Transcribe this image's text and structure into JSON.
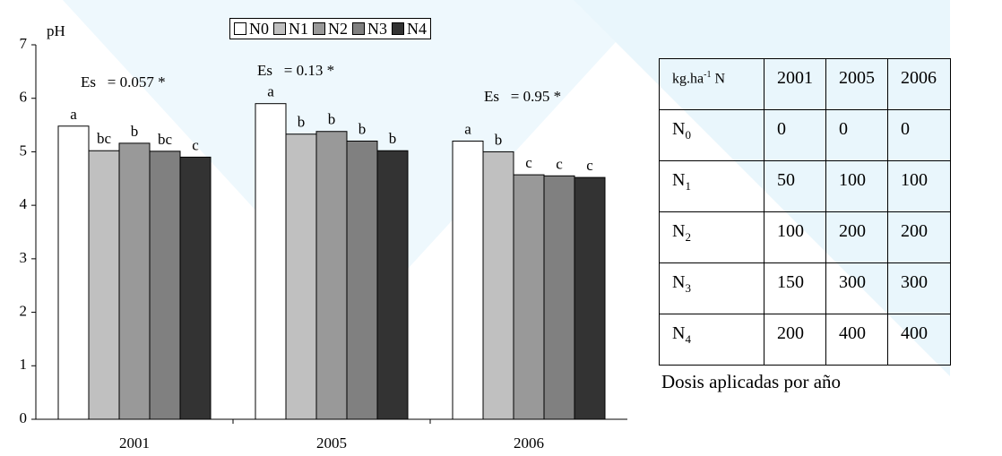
{
  "chart_data": {
    "type": "bar",
    "ylabel": "pH",
    "ylim": [
      0,
      7
    ],
    "yticks": [
      "0",
      "1",
      "2",
      "3",
      "4",
      "5",
      "6",
      "7"
    ],
    "categories": [
      "2001",
      "2005",
      "2006"
    ],
    "series": [
      {
        "name": "N0",
        "values": [
          5.48,
          5.9,
          5.2
        ]
      },
      {
        "name": "N1",
        "values": [
          5.02,
          5.33,
          5.0
        ]
      },
      {
        "name": "N2",
        "values": [
          5.16,
          5.38,
          4.57
        ]
      },
      {
        "name": "N3",
        "values": [
          5.01,
          5.2,
          4.55
        ]
      },
      {
        "name": "N4",
        "values": [
          4.9,
          5.02,
          4.52
        ]
      }
    ],
    "bar_letters": [
      [
        "a",
        "bc",
        "b",
        "bc",
        "c"
      ],
      [
        "a",
        "b",
        "b",
        "b",
        "b"
      ],
      [
        "a",
        "b",
        "c",
        "c",
        "c"
      ]
    ],
    "annotations": [
      "Es   = 0.057 *",
      "Es   = 0.13 *",
      "Es   = 0.95 *"
    ],
    "colors": [
      "#ffffff",
      "#c0c0c0",
      "#999999",
      "#808080",
      "#333333"
    ],
    "legend_position": "top",
    "grid": false
  },
  "dose_table": {
    "header": [
      "kg.ha-1 N",
      "2001",
      "2005",
      "2006"
    ],
    "rows": [
      [
        "N0",
        "0",
        "0",
        "0"
      ],
      [
        "N1",
        "50",
        "100",
        "100"
      ],
      [
        "N2",
        "100",
        "200",
        "200"
      ],
      [
        "N3",
        "150",
        "300",
        "300"
      ],
      [
        "N4",
        "200",
        "400",
        "400"
      ]
    ],
    "caption": "Dosis aplicadas por año"
  }
}
